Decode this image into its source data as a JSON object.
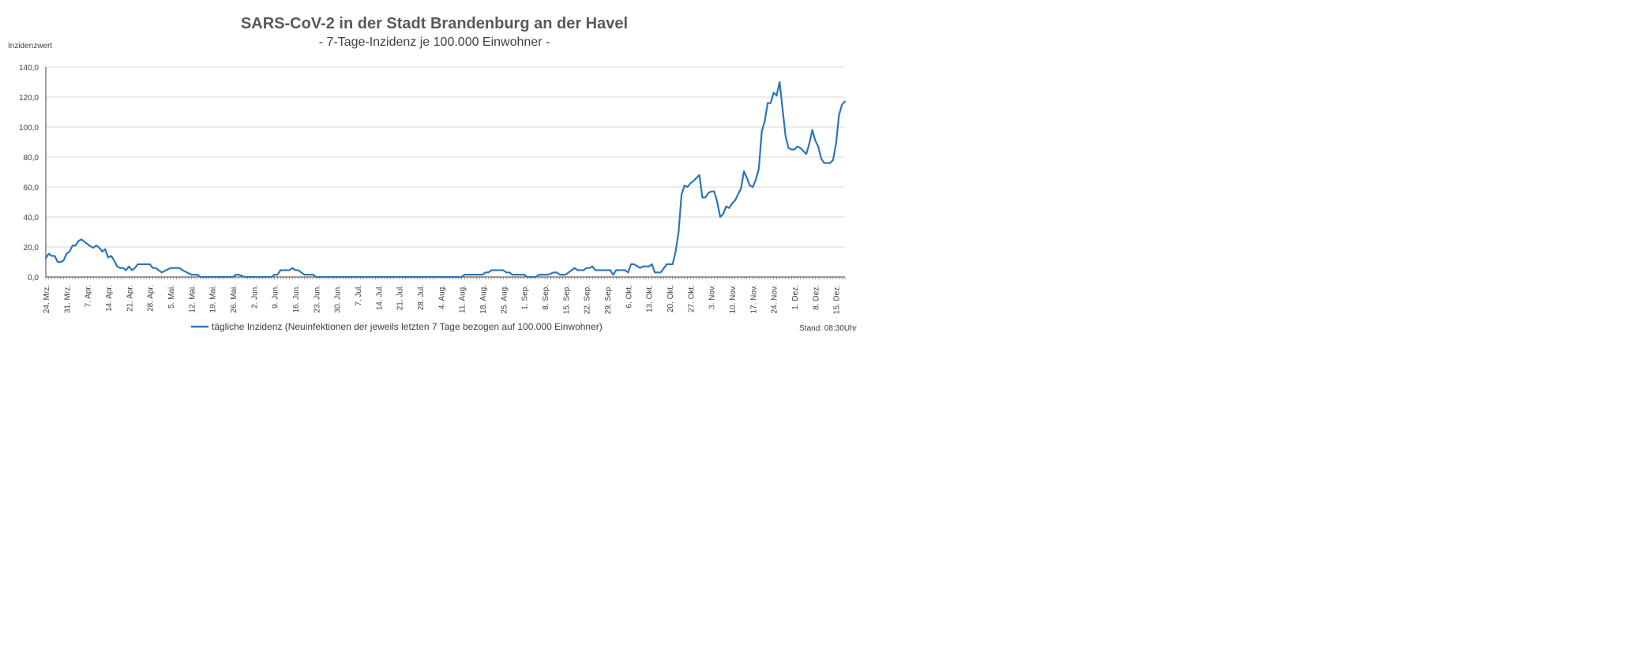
{
  "chart_data": {
    "type": "line",
    "title": "SARS-CoV-2 in der Stadt Brandenburg an der Havel",
    "subtitle": "- 7-Tage-Inzidenz je 100.000 Einwohner -",
    "ylabel": "Inzidenzwert",
    "xlabel": "",
    "ylim": [
      0,
      140
    ],
    "yticks": [
      0,
      20,
      40,
      60,
      80,
      100,
      120,
      140
    ],
    "ytick_labels": [
      "0,0",
      "20,0",
      "40,0",
      "60,0",
      "80,0",
      "100,0",
      "120,0",
      "140,0"
    ],
    "grid": true,
    "legend_position": "bottom",
    "series_color": "#2E75B6",
    "xlim": [
      "2020-03-24",
      "2020-12-18"
    ],
    "xtick_dates": [
      "2020-03-24",
      "2020-03-31",
      "2020-04-07",
      "2020-04-14",
      "2020-04-21",
      "2020-04-28",
      "2020-05-05",
      "2020-05-12",
      "2020-05-19",
      "2020-05-26",
      "2020-06-02",
      "2020-06-09",
      "2020-06-16",
      "2020-06-23",
      "2020-06-30",
      "2020-07-07",
      "2020-07-14",
      "2020-07-21",
      "2020-07-28",
      "2020-08-04",
      "2020-08-11",
      "2020-08-18",
      "2020-08-25",
      "2020-09-01",
      "2020-09-08",
      "2020-09-15",
      "2020-09-22",
      "2020-09-29",
      "2020-10-06",
      "2020-10-13",
      "2020-10-20",
      "2020-10-27",
      "2020-11-03",
      "2020-11-10",
      "2020-11-17",
      "2020-11-24",
      "2020-12-01",
      "2020-12-08",
      "2020-12-15"
    ],
    "xtick_labels": [
      "24. Mrz.",
      "31. Mrz.",
      "7. Apr.",
      "14. Apr.",
      "21. Apr.",
      "28. Apr.",
      "5. Mai.",
      "12. Mai.",
      "19. Mai.",
      "26. Mai.",
      "2. Jun.",
      "9. Jun.",
      "16. Jun.",
      "23. Jun.",
      "30. Jun.",
      "7. Jul.",
      "14. Jul.",
      "21. Jul.",
      "28. Jul.",
      "4. Aug.",
      "11. Aug.",
      "18. Aug.",
      "25. Aug.",
      "1. Sep.",
      "8. Sep.",
      "15. Sep.",
      "22. Sep.",
      "29. Sep.",
      "6. Okt.",
      "13. Okt.",
      "20. Okt.",
      "27. Okt.",
      "3. Nov.",
      "10. Nov.",
      "17. Nov.",
      "24. Nov.",
      "1. Dez.",
      "8. Dez.",
      "15. Dez."
    ],
    "series": [
      {
        "name": "tägliche Inzidenz (Neuinfektionen der jeweils letzten 7 Tage bezogen auf 100.000 Einwohner)",
        "x": [
          "2020-03-24",
          "2020-03-25",
          "2020-03-26",
          "2020-03-27",
          "2020-03-28",
          "2020-03-29",
          "2020-03-30",
          "2020-03-31",
          "2020-04-01",
          "2020-04-02",
          "2020-04-03",
          "2020-04-04",
          "2020-04-05",
          "2020-04-06",
          "2020-04-07",
          "2020-04-08",
          "2020-04-09",
          "2020-04-10",
          "2020-04-11",
          "2020-04-12",
          "2020-04-13",
          "2020-04-14",
          "2020-04-15",
          "2020-04-16",
          "2020-04-17",
          "2020-04-18",
          "2020-04-19",
          "2020-04-20",
          "2020-04-21",
          "2020-04-22",
          "2020-04-23",
          "2020-04-24",
          "2020-04-28",
          "2020-04-29",
          "2020-04-30",
          "2020-05-01",
          "2020-05-02",
          "2020-05-05",
          "2020-05-06",
          "2020-05-07",
          "2020-05-08",
          "2020-05-09",
          "2020-05-12",
          "2020-05-13",
          "2020-05-14",
          "2020-05-15",
          "2020-05-26",
          "2020-05-27",
          "2020-05-28",
          "2020-05-30",
          "2020-06-08",
          "2020-06-09",
          "2020-06-10",
          "2020-06-11",
          "2020-06-13",
          "2020-06-14",
          "2020-06-15",
          "2020-06-16",
          "2020-06-17",
          "2020-06-19",
          "2020-06-22",
          "2020-06-23",
          "2020-08-11",
          "2020-08-12",
          "2020-08-17",
          "2020-08-18",
          "2020-08-19",
          "2020-08-20",
          "2020-08-21",
          "2020-08-24",
          "2020-08-25",
          "2020-08-26",
          "2020-08-27",
          "2020-08-28",
          "2020-09-01",
          "2020-09-02",
          "2020-09-03",
          "2020-09-05",
          "2020-09-06",
          "2020-09-07",
          "2020-09-08",
          "2020-09-09",
          "2020-09-11",
          "2020-09-12",
          "2020-09-13",
          "2020-09-14",
          "2020-09-15",
          "2020-09-16",
          "2020-09-18",
          "2020-09-19",
          "2020-09-21",
          "2020-09-22",
          "2020-09-23",
          "2020-09-24",
          "2020-09-25",
          "2020-09-28",
          "2020-09-30",
          "2020-10-01",
          "2020-10-02",
          "2020-10-04",
          "2020-10-05",
          "2020-10-06",
          "2020-10-07",
          "2020-10-08",
          "2020-10-10",
          "2020-10-11",
          "2020-10-12",
          "2020-10-13",
          "2020-10-14",
          "2020-10-15",
          "2020-10-16",
          "2020-10-17",
          "2020-10-19",
          "2020-10-20",
          "2020-10-21",
          "2020-10-22",
          "2020-10-23",
          "2020-10-24",
          "2020-10-25",
          "2020-10-26",
          "2020-10-27",
          "2020-10-28",
          "2020-10-29",
          "2020-10-30",
          "2020-10-31",
          "2020-11-01",
          "2020-11-02",
          "2020-11-03",
          "2020-11-04",
          "2020-11-05",
          "2020-11-06",
          "2020-11-07",
          "2020-11-08",
          "2020-11-09",
          "2020-11-10",
          "2020-11-11",
          "2020-11-12",
          "2020-11-13",
          "2020-11-14",
          "2020-11-15",
          "2020-11-16",
          "2020-11-17",
          "2020-11-18",
          "2020-11-19",
          "2020-11-20",
          "2020-11-21",
          "2020-11-22",
          "2020-11-23",
          "2020-11-24",
          "2020-11-25",
          "2020-11-26",
          "2020-11-27",
          "2020-11-28",
          "2020-11-29",
          "2020-11-30",
          "2020-12-01",
          "2020-12-02",
          "2020-12-03",
          "2020-12-04",
          "2020-12-05",
          "2020-12-06",
          "2020-12-07",
          "2020-12-08",
          "2020-12-09",
          "2020-12-10",
          "2020-12-11",
          "2020-12-12",
          "2020-12-13",
          "2020-12-14",
          "2020-12-15",
          "2020-12-16",
          "2020-12-17",
          "2020-12-18"
        ],
        "values": [
          12.5,
          15.5,
          14,
          14,
          10,
          10,
          11,
          15.5,
          17,
          21,
          21,
          24,
          25,
          23.5,
          22,
          20.5,
          19.5,
          21,
          19.5,
          17,
          18.5,
          13,
          14,
          11,
          7,
          6,
          6,
          4.5,
          7,
          4.5,
          6,
          8.5,
          8.5,
          6,
          6,
          4.5,
          3,
          6,
          6,
          6,
          6,
          4.5,
          1.5,
          1.5,
          1.5,
          0,
          0,
          1.5,
          1.5,
          0,
          0,
          1.5,
          1.5,
          4.5,
          4.5,
          4.5,
          6,
          4.5,
          4.5,
          1.5,
          1.5,
          0,
          0,
          1.5,
          1.5,
          1.5,
          3,
          3,
          4.5,
          4.5,
          4.5,
          3,
          3,
          1.5,
          1.5,
          0,
          0,
          0,
          1.5,
          1.5,
          1.5,
          1.5,
          3,
          3,
          1.5,
          1.5,
          1.5,
          3,
          6,
          4.5,
          4.5,
          6,
          6,
          7,
          4.5,
          4.5,
          4.5,
          1.5,
          4.5,
          4.5,
          4.5,
          3,
          8.5,
          8.5,
          6,
          7,
          7,
          7,
          8.5,
          3,
          3,
          3,
          8.5,
          8.5,
          8.5,
          17,
          30,
          55,
          61,
          60,
          62.5,
          64,
          66,
          68,
          53,
          53,
          56,
          57,
          57,
          50,
          40,
          42,
          47,
          46,
          49,
          51,
          55,
          59,
          70.5,
          66,
          61,
          60,
          65,
          72,
          97,
          104,
          116,
          116,
          123,
          121,
          130,
          112,
          94,
          86,
          85,
          85,
          87,
          86,
          84,
          82,
          89,
          98,
          91,
          87,
          79,
          76,
          76,
          76,
          78,
          89,
          108,
          115,
          117
        ]
      }
    ]
  },
  "footer": {
    "timestamp": "Stand: 08:30Uhr"
  }
}
